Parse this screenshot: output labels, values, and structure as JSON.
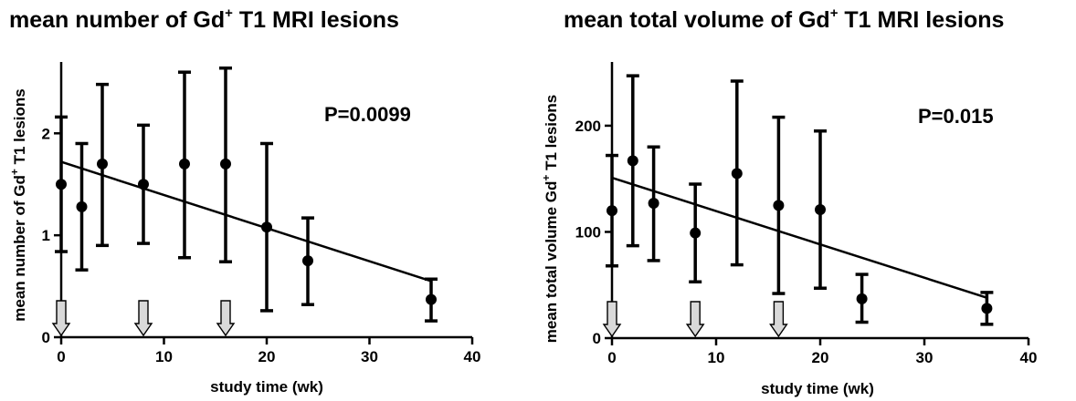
{
  "chart_data": [
    {
      "type": "scatter",
      "title": "mean number of Gd⁺ T1 MRI lesions",
      "title_main": "mean number of Gd",
      "title_sup": "+",
      "title_rest": " T1 MRI lesions",
      "xlabel": "study time (wk)",
      "ylabel": "mean number of Gd⁺ T1 lesions",
      "ylabel_main": "mean number of Gd",
      "ylabel_sup": "+",
      "ylabel_rest": " T1 lesions",
      "annotation": "P=0.0099",
      "xlim": [
        0,
        40
      ],
      "ylim": [
        0,
        2.7
      ],
      "xticks": [
        0,
        10,
        20,
        30,
        40
      ],
      "yticks": [
        0,
        1,
        2
      ],
      "points": [
        {
          "x": 0,
          "y": 1.5,
          "lo": 0.84,
          "hi": 2.16
        },
        {
          "x": 2,
          "y": 1.28,
          "lo": 0.66,
          "hi": 1.9
        },
        {
          "x": 4,
          "y": 1.7,
          "lo": 0.9,
          "hi": 2.48
        },
        {
          "x": 8,
          "y": 1.5,
          "lo": 0.92,
          "hi": 2.08
        },
        {
          "x": 12,
          "y": 1.7,
          "lo": 0.78,
          "hi": 2.6
        },
        {
          "x": 16,
          "y": 1.7,
          "lo": 0.74,
          "hi": 2.64
        },
        {
          "x": 20,
          "y": 1.08,
          "lo": 0.26,
          "hi": 1.9
        },
        {
          "x": 24,
          "y": 0.75,
          "lo": 0.32,
          "hi": 1.17
        },
        {
          "x": 36,
          "y": 0.37,
          "lo": 0.16,
          "hi": 0.57
        }
      ],
      "regression": {
        "x": [
          0,
          36
        ],
        "y": [
          1.72,
          0.55
        ]
      },
      "arrows_x": [
        0,
        8,
        16
      ],
      "colors": {
        "ink": "#000000",
        "arrow_fill": "#d9d9d9"
      }
    },
    {
      "type": "scatter",
      "title": "mean total volume of Gd⁺ T1 MRI lesions",
      "title_main": "mean total volume of Gd",
      "title_sup": "+",
      "title_rest": " T1 MRI lesions",
      "xlabel": "study time (wk)",
      "ylabel": "mean total volume Gd⁺ T1 lesions",
      "ylabel_main": "mean total volume Gd",
      "ylabel_sup": "+",
      "ylabel_rest": " T1 lesions",
      "annotation": "P=0.015",
      "xlim": [
        0,
        40
      ],
      "ylim": [
        0,
        260
      ],
      "xticks": [
        0,
        10,
        20,
        30,
        40
      ],
      "yticks": [
        0,
        100,
        200
      ],
      "points": [
        {
          "x": 0,
          "y": 120,
          "lo": 68,
          "hi": 172
        },
        {
          "x": 2,
          "y": 167,
          "lo": 87,
          "hi": 247
        },
        {
          "x": 4,
          "y": 127,
          "lo": 73,
          "hi": 180
        },
        {
          "x": 8,
          "y": 99,
          "lo": 53,
          "hi": 145
        },
        {
          "x": 12,
          "y": 155,
          "lo": 69,
          "hi": 242
        },
        {
          "x": 16,
          "y": 125,
          "lo": 42,
          "hi": 208
        },
        {
          "x": 20,
          "y": 121,
          "lo": 47,
          "hi": 195
        },
        {
          "x": 24,
          "y": 37,
          "lo": 15,
          "hi": 60
        },
        {
          "x": 36,
          "y": 28,
          "lo": 13,
          "hi": 43
        }
      ],
      "regression": {
        "x": [
          0,
          36
        ],
        "y": [
          151,
          38
        ]
      },
      "arrows_x": [
        0,
        8,
        16
      ],
      "colors": {
        "ink": "#000000",
        "arrow_fill": "#d9d9d9"
      }
    }
  ]
}
